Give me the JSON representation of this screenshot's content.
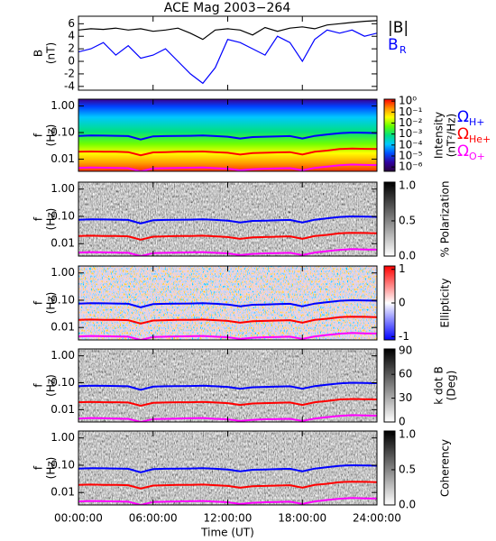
{
  "chart_data": [
    {
      "type": "line",
      "title": "ACE Mag 2003−264",
      "ylabel": [
        "B",
        "(nT)"
      ],
      "xlim": [
        0,
        24
      ],
      "xticks": [
        0,
        6,
        12,
        18,
        24
      ],
      "ylim": [
        -4.6,
        7.2
      ],
      "yticks": [
        -4,
        -2,
        0,
        2,
        4,
        6
      ],
      "x": [
        0,
        1,
        2,
        3,
        4,
        5,
        6,
        7,
        8,
        9,
        10,
        11,
        12,
        13,
        14,
        15,
        16,
        17,
        18,
        19,
        20,
        21,
        22,
        23,
        24
      ],
      "series": [
        {
          "name": "|B|",
          "color": "#000000",
          "values": [
            5.0,
            5.2,
            5.1,
            5.3,
            5.0,
            5.2,
            4.8,
            5.0,
            5.3,
            4.5,
            3.5,
            5.0,
            5.2,
            5.0,
            4.2,
            5.4,
            4.8,
            5.3,
            5.5,
            5.2,
            5.8,
            6.0,
            6.2,
            6.4,
            6.5
          ]
        },
        {
          "name": "B",
          "subscript": "R",
          "color": "#0000ff",
          "values": [
            1.5,
            2.0,
            3.0,
            1.0,
            2.5,
            0.5,
            1.0,
            2.0,
            0.0,
            -2.0,
            -3.5,
            -1.0,
            3.5,
            3.0,
            2.0,
            1.0,
            4.0,
            3.0,
            0.0,
            3.5,
            5.0,
            4.5,
            5.0,
            4.0,
            4.5
          ]
        }
      ]
    },
    {
      "type": "spectrogram",
      "field": "intensity",
      "legend": true,
      "ylabel": [
        "f",
        "(Hz)"
      ],
      "xlim": [
        0,
        24
      ],
      "xticks": [
        0,
        6,
        12,
        18,
        24
      ],
      "ylim": [
        0.0035,
        1.8
      ],
      "log_y": true,
      "yticks": [
        {
          "value": 1,
          "label": "1.00"
        },
        {
          "value": 0.1,
          "label": "0.10"
        },
        {
          "value": 0.01,
          "label": "0.01"
        }
      ],
      "colorbar": {
        "label": [
          "Intensity",
          "(nT²/Hz)"
        ],
        "log": true,
        "lim": [
          4e-07,
          1.5
        ],
        "ticks": [
          {
            "value": 1,
            "label": "10⁰"
          },
          {
            "value": 0.1,
            "label": "10⁻¹"
          },
          {
            "value": 0.01,
            "label": "10⁻²"
          },
          {
            "value": 0.001,
            "label": "10⁻³"
          },
          {
            "value": 0.0001,
            "label": "10⁻⁴"
          },
          {
            "value": 1e-05,
            "label": "10⁻⁵"
          },
          {
            "value": 1e-06,
            "label": "10⁻⁶"
          }
        ],
        "colors": [
          "#2a0040",
          "#3000a0",
          "#0050ff",
          "#00c8ff",
          "#00e080",
          "#60ff00",
          "#ffff00",
          "#ff9000",
          "#ff0000"
        ]
      },
      "x": [
        0,
        1,
        2,
        3,
        4,
        5,
        6,
        7,
        8,
        9,
        10,
        11,
        12,
        13,
        14,
        15,
        16,
        17,
        18,
        19,
        20,
        21,
        22,
        23,
        24
      ],
      "series": [
        {
          "name": "Ω",
          "subscript": "H+",
          "color": "#0000ff",
          "values": [
            0.075,
            0.078,
            0.077,
            0.076,
            0.074,
            0.055,
            0.072,
            0.074,
            0.075,
            0.076,
            0.078,
            0.074,
            0.07,
            0.06,
            0.068,
            0.07,
            0.072,
            0.074,
            0.06,
            0.075,
            0.085,
            0.095,
            0.1,
            0.098,
            0.096
          ]
        },
        {
          "name": "Ω",
          "subscript": "He+",
          "color": "#ff0000",
          "values": [
            0.019,
            0.0195,
            0.019,
            0.019,
            0.0185,
            0.014,
            0.018,
            0.0185,
            0.019,
            0.019,
            0.0195,
            0.0185,
            0.0175,
            0.015,
            0.017,
            0.0175,
            0.018,
            0.0185,
            0.015,
            0.019,
            0.021,
            0.024,
            0.025,
            0.0245,
            0.024
          ]
        },
        {
          "name": "Ω",
          "subscript": "O+",
          "color": "#ff00ff",
          "values": [
            0.0047,
            0.0049,
            0.0048,
            0.0047,
            0.0046,
            0.0035,
            0.0045,
            0.0046,
            0.0047,
            0.0048,
            0.0049,
            0.0046,
            0.0044,
            0.0038,
            0.0042,
            0.0044,
            0.0045,
            0.0046,
            0.0038,
            0.0047,
            0.0053,
            0.0059,
            0.0063,
            0.0061,
            0.006
          ]
        }
      ]
    },
    {
      "type": "spectrogram",
      "field": "gray",
      "ylabel": [
        "f",
        "(Hz)"
      ],
      "xlim": [
        0,
        24
      ],
      "xticks": [
        0,
        6,
        12,
        18,
        24
      ],
      "ylim": [
        0.0035,
        1.8
      ],
      "log_y": true,
      "yticks": [
        {
          "value": 1,
          "label": "1.00"
        },
        {
          "value": 0.1,
          "label": "0.10"
        },
        {
          "value": 0.01,
          "label": "0.01"
        }
      ],
      "colorbar": {
        "label": [
          "% Polarization"
        ],
        "lim": [
          0,
          1.05
        ],
        "ticks": [
          {
            "value": 0,
            "label": "0.0"
          },
          {
            "value": 0.5,
            "label": "0.5"
          },
          {
            "value": 1,
            "label": "1.0"
          }
        ],
        "colors": [
          "#ffffff",
          "#000000"
        ]
      },
      "x": [
        0,
        1,
        2,
        3,
        4,
        5,
        6,
        7,
        8,
        9,
        10,
        11,
        12,
        13,
        14,
        15,
        16,
        17,
        18,
        19,
        20,
        21,
        22,
        23,
        24
      ],
      "series": [
        {
          "name": "Ω",
          "subscript": "H+",
          "color": "#0000ff",
          "values": [
            0.075,
            0.078,
            0.077,
            0.076,
            0.074,
            0.055,
            0.072,
            0.074,
            0.075,
            0.076,
            0.078,
            0.074,
            0.07,
            0.06,
            0.068,
            0.07,
            0.072,
            0.074,
            0.06,
            0.075,
            0.085,
            0.095,
            0.1,
            0.098,
            0.096
          ]
        },
        {
          "name": "Ω",
          "subscript": "He+",
          "color": "#ff0000",
          "values": [
            0.019,
            0.0195,
            0.019,
            0.019,
            0.0185,
            0.014,
            0.018,
            0.0185,
            0.019,
            0.019,
            0.0195,
            0.0185,
            0.0175,
            0.015,
            0.017,
            0.0175,
            0.018,
            0.0185,
            0.015,
            0.019,
            0.021,
            0.024,
            0.025,
            0.0245,
            0.024
          ]
        },
        {
          "name": "Ω",
          "subscript": "O+",
          "color": "#ff00ff",
          "values": [
            0.0047,
            0.0049,
            0.0048,
            0.0047,
            0.0046,
            0.0035,
            0.0045,
            0.0046,
            0.0047,
            0.0048,
            0.0049,
            0.0046,
            0.0044,
            0.0038,
            0.0042,
            0.0044,
            0.0045,
            0.0046,
            0.0038,
            0.0047,
            0.0053,
            0.0059,
            0.0063,
            0.0061,
            0.006
          ]
        }
      ]
    },
    {
      "type": "spectrogram",
      "field": "diverging",
      "ylabel": [
        "f",
        "(Hz)"
      ],
      "xlim": [
        0,
        24
      ],
      "xticks": [
        0,
        6,
        12,
        18,
        24
      ],
      "ylim": [
        0.0035,
        1.8
      ],
      "log_y": true,
      "yticks": [
        {
          "value": 1,
          "label": "1.00"
        },
        {
          "value": 0.1,
          "label": "0.10"
        },
        {
          "value": 0.01,
          "label": "0.01"
        }
      ],
      "colorbar": {
        "label": [
          "Ellipticity"
        ],
        "lim": [
          -1.1,
          1.1
        ],
        "ticks": [
          -1,
          0,
          1
        ],
        "colors": [
          "#0000ff",
          "#ffffff",
          "#ff0000"
        ]
      },
      "x": [
        0,
        1,
        2,
        3,
        4,
        5,
        6,
        7,
        8,
        9,
        10,
        11,
        12,
        13,
        14,
        15,
        16,
        17,
        18,
        19,
        20,
        21,
        22,
        23,
        24
      ],
      "series": [
        {
          "name": "Ω",
          "subscript": "H+",
          "color": "#0000ff",
          "values": [
            0.075,
            0.078,
            0.077,
            0.076,
            0.074,
            0.055,
            0.072,
            0.074,
            0.075,
            0.076,
            0.078,
            0.074,
            0.07,
            0.06,
            0.068,
            0.07,
            0.072,
            0.074,
            0.06,
            0.075,
            0.085,
            0.095,
            0.1,
            0.098,
            0.096
          ]
        },
        {
          "name": "Ω",
          "subscript": "He+",
          "color": "#ff0000",
          "values": [
            0.019,
            0.0195,
            0.019,
            0.019,
            0.0185,
            0.014,
            0.018,
            0.0185,
            0.019,
            0.019,
            0.0195,
            0.0185,
            0.0175,
            0.015,
            0.017,
            0.0175,
            0.018,
            0.0185,
            0.015,
            0.019,
            0.021,
            0.024,
            0.025,
            0.0245,
            0.024
          ]
        },
        {
          "name": "Ω",
          "subscript": "O+",
          "color": "#ff00ff",
          "values": [
            0.0047,
            0.0049,
            0.0048,
            0.0047,
            0.0046,
            0.0035,
            0.0045,
            0.0046,
            0.0047,
            0.0048,
            0.0049,
            0.0046,
            0.0044,
            0.0038,
            0.0042,
            0.0044,
            0.0045,
            0.0046,
            0.0038,
            0.0047,
            0.0053,
            0.0059,
            0.0063,
            0.0061,
            0.006
          ]
        }
      ]
    },
    {
      "type": "spectrogram",
      "field": "gray",
      "ylabel": [
        "f",
        "(Hz)"
      ],
      "xlim": [
        0,
        24
      ],
      "xticks": [
        0,
        6,
        12,
        18,
        24
      ],
      "ylim": [
        0.0035,
        1.8
      ],
      "log_y": true,
      "yticks": [
        {
          "value": 1,
          "label": "1.00"
        },
        {
          "value": 0.1,
          "label": "0.10"
        },
        {
          "value": 0.01,
          "label": "0.01"
        }
      ],
      "colorbar": {
        "label": [
          "k dot B",
          "(Deg)"
        ],
        "lim": [
          0,
          92
        ],
        "ticks": [
          0,
          30,
          60,
          90
        ],
        "colors": [
          "#ffffff",
          "#000000"
        ]
      },
      "x": [
        0,
        1,
        2,
        3,
        4,
        5,
        6,
        7,
        8,
        9,
        10,
        11,
        12,
        13,
        14,
        15,
        16,
        17,
        18,
        19,
        20,
        21,
        22,
        23,
        24
      ],
      "series": [
        {
          "name": "Ω",
          "subscript": "H+",
          "color": "#0000ff",
          "values": [
            0.075,
            0.078,
            0.077,
            0.076,
            0.074,
            0.055,
            0.072,
            0.074,
            0.075,
            0.076,
            0.078,
            0.074,
            0.07,
            0.06,
            0.068,
            0.07,
            0.072,
            0.074,
            0.06,
            0.075,
            0.085,
            0.095,
            0.1,
            0.098,
            0.096
          ]
        },
        {
          "name": "Ω",
          "subscript": "He+",
          "color": "#ff0000",
          "values": [
            0.019,
            0.0195,
            0.019,
            0.019,
            0.0185,
            0.014,
            0.018,
            0.0185,
            0.019,
            0.019,
            0.0195,
            0.0185,
            0.0175,
            0.015,
            0.017,
            0.0175,
            0.018,
            0.0185,
            0.015,
            0.019,
            0.021,
            0.024,
            0.025,
            0.0245,
            0.024
          ]
        },
        {
          "name": "Ω",
          "subscript": "O+",
          "color": "#ff00ff",
          "values": [
            0.0047,
            0.0049,
            0.0048,
            0.0047,
            0.0046,
            0.0035,
            0.0045,
            0.0046,
            0.0047,
            0.0048,
            0.0049,
            0.0046,
            0.0044,
            0.0038,
            0.0042,
            0.0044,
            0.0045,
            0.0046,
            0.0038,
            0.0047,
            0.0053,
            0.0059,
            0.0063,
            0.0061,
            0.006
          ]
        }
      ]
    },
    {
      "type": "spectrogram",
      "field": "gray",
      "ylabel": [
        "f",
        "(Hz)"
      ],
      "xlabel": "Time (UT)",
      "xlim": [
        0,
        24
      ],
      "xticks": [
        {
          "value": 0,
          "label": "00:00:00"
        },
        {
          "value": 6,
          "label": "06:00:00"
        },
        {
          "value": 12,
          "label": "12:00:00"
        },
        {
          "value": 18,
          "label": "18:00:00"
        },
        {
          "value": 24,
          "label": "24:00:00"
        }
      ],
      "ylim": [
        0.0035,
        1.8
      ],
      "log_y": true,
      "yticks": [
        {
          "value": 1,
          "label": "1.00"
        },
        {
          "value": 0.1,
          "label": "0.10"
        },
        {
          "value": 0.01,
          "label": "0.01"
        }
      ],
      "colorbar": {
        "label": [
          "Coherency"
        ],
        "lim": [
          0,
          1.05
        ],
        "ticks": [
          {
            "value": 0,
            "label": "0.0"
          },
          {
            "value": 0.5,
            "label": "0.5"
          },
          {
            "value": 1,
            "label": "1.0"
          }
        ],
        "colors": [
          "#ffffff",
          "#000000"
        ]
      },
      "x": [
        0,
        1,
        2,
        3,
        4,
        5,
        6,
        7,
        8,
        9,
        10,
        11,
        12,
        13,
        14,
        15,
        16,
        17,
        18,
        19,
        20,
        21,
        22,
        23,
        24
      ],
      "series": [
        {
          "name": "Ω",
          "subscript": "H+",
          "color": "#0000ff",
          "values": [
            0.075,
            0.078,
            0.077,
            0.076,
            0.074,
            0.055,
            0.072,
            0.074,
            0.075,
            0.076,
            0.078,
            0.074,
            0.07,
            0.06,
            0.068,
            0.07,
            0.072,
            0.074,
            0.06,
            0.075,
            0.085,
            0.095,
            0.1,
            0.098,
            0.096
          ]
        },
        {
          "name": "Ω",
          "subscript": "He+",
          "color": "#ff0000",
          "values": [
            0.019,
            0.0195,
            0.019,
            0.019,
            0.0185,
            0.014,
            0.018,
            0.0185,
            0.019,
            0.019,
            0.0195,
            0.0185,
            0.0175,
            0.015,
            0.017,
            0.0175,
            0.018,
            0.0185,
            0.015,
            0.019,
            0.021,
            0.024,
            0.025,
            0.0245,
            0.024
          ]
        },
        {
          "name": "Ω",
          "subscript": "O+",
          "color": "#ff00ff",
          "values": [
            0.0047,
            0.0049,
            0.0048,
            0.0047,
            0.0046,
            0.0035,
            0.0045,
            0.0046,
            0.0047,
            0.0048,
            0.0049,
            0.0046,
            0.0044,
            0.0038,
            0.0042,
            0.0044,
            0.0045,
            0.0046,
            0.0038,
            0.0047,
            0.0053,
            0.0059,
            0.0063,
            0.0061,
            0.006
          ]
        }
      ]
    }
  ]
}
